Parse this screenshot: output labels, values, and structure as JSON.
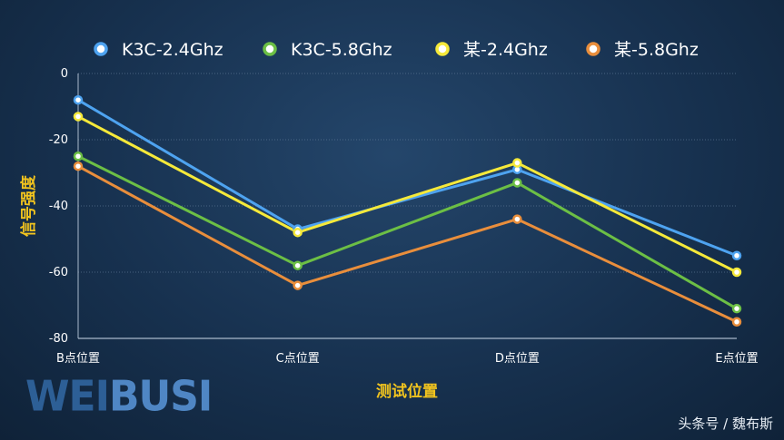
{
  "chart_data": {
    "type": "line",
    "categories": [
      "B点位置",
      "C点位置",
      "D点位置",
      "E点位置"
    ],
    "xlabel": "测试位置",
    "ylabel": "信号强度",
    "ylim": [
      -80,
      0
    ],
    "yticks": [
      0,
      -20,
      -40,
      -60,
      -80
    ],
    "grid": true,
    "legend_position": "top",
    "series": [
      {
        "name": "K3C-2.4Ghz",
        "color": "#4ea3f0",
        "values": [
          -8,
          -47,
          -29,
          -55
        ]
      },
      {
        "name": "K3C-5.8Ghz",
        "color": "#6cbf45",
        "values": [
          -25,
          -58,
          -33,
          -71
        ]
      },
      {
        "name": "某-2.4Ghz",
        "color": "#f5e93a",
        "values": [
          -13,
          -48,
          -27,
          -60
        ]
      },
      {
        "name": "某-5.8Ghz",
        "color": "#e98e3c",
        "values": [
          -28,
          -64,
          -44,
          -75
        ]
      }
    ]
  },
  "watermark": {
    "text_dark": "WEI",
    "text_light": "BUSI"
  },
  "credit": "头条号 / 魏布斯"
}
